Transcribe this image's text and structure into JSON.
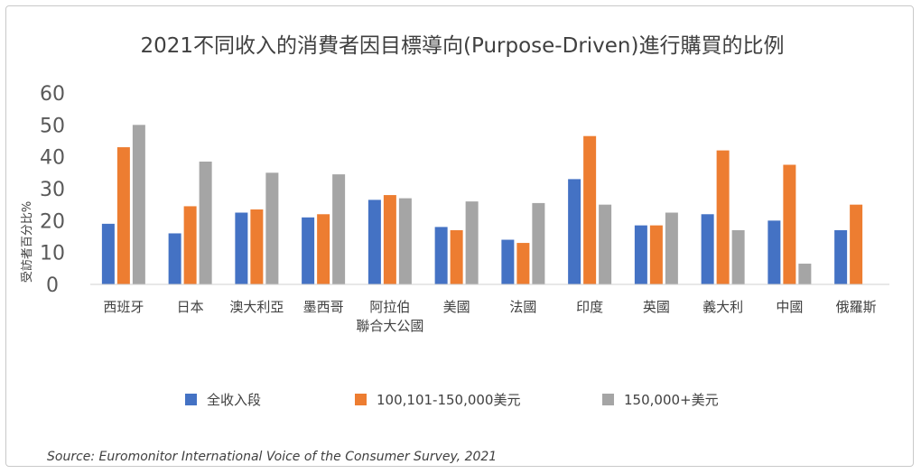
{
  "chart_data": {
    "type": "bar",
    "title": "2021不同收入的消費者因目標導向(Purpose-Driven)進行購買的比例",
    "ylabel": "受訪者百分比%",
    "xlabel": "",
    "ylim": [
      0,
      60
    ],
    "yticks": [
      0,
      10,
      20,
      30,
      40,
      50,
      60
    ],
    "grid": false,
    "legend_position": "bottom",
    "categories": [
      [
        "西班牙"
      ],
      [
        "日本"
      ],
      [
        "澳大利亞"
      ],
      [
        "墨西哥"
      ],
      [
        "阿拉伯",
        "聯合大公國"
      ],
      [
        "美國"
      ],
      [
        "法國"
      ],
      [
        "印度"
      ],
      [
        "英國"
      ],
      [
        "義大利"
      ],
      [
        "中國"
      ],
      [
        "俄羅斯"
      ]
    ],
    "series": [
      {
        "name": "全收入段",
        "color": "#4472C4",
        "values": [
          19,
          16,
          22.5,
          21,
          26.5,
          18,
          14,
          33,
          18.5,
          22,
          20,
          17
        ]
      },
      {
        "name": "100,101-150,000美元",
        "color": "#ED7D31",
        "values": [
          43,
          24.5,
          23.5,
          22,
          28,
          17,
          13,
          46.5,
          18.5,
          42,
          37.5,
          25
        ]
      },
      {
        "name": "150,000+美元",
        "color": "#A5A5A5",
        "values": [
          50,
          38.5,
          35,
          34.5,
          27,
          26,
          25.5,
          25,
          22.5,
          17,
          6.5,
          null
        ]
      }
    ]
  },
  "source": "Source: Euromonitor International Voice of the Consumer Survey, 2021"
}
